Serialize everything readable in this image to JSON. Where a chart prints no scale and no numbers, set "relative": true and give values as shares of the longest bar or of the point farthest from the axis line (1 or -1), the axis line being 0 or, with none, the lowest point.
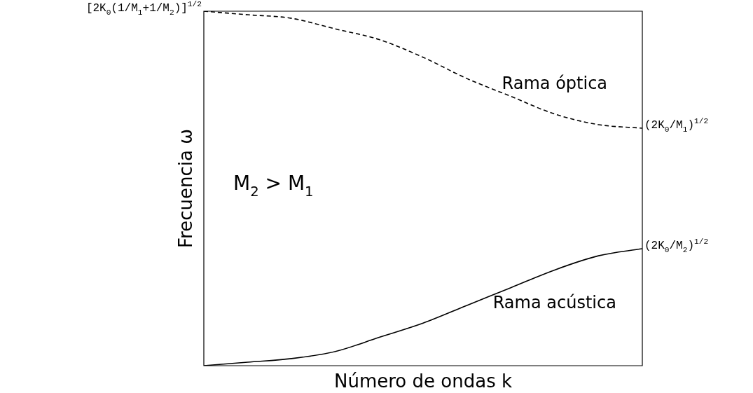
{
  "chart_data": {
    "type": "line",
    "relative": true,
    "xlabel": "Número de ondas k",
    "ylabel": "Frecuencia ω",
    "marker": "none",
    "categories": [
      null,
      null,
      null,
      null,
      null,
      null,
      null,
      null,
      null,
      null,
      null
    ],
    "series": [
      {
        "name": "Rama óptica",
        "color": "#000000",
        "line_style": "dashed",
        "values": [
          1,
          0.99,
          0.98,
          0.95,
          0.92,
          0.87,
          0.81,
          0.76,
          0.71,
          0.68,
          0.67
        ]
      },
      {
        "name": "Rama acústica",
        "color": "#000000",
        "line_style": "solid",
        "values": [
          0,
          0.01,
          0.02,
          0.04,
          0.08,
          0.12,
          0.17,
          0.22,
          0.27,
          0.31,
          0.33
        ]
      }
    ],
    "annotations": [
      "[2K$_{0}$(1/M$_{1}$+1/M$_{2}$)]$^{1/2}$",
      "(2K$_{0}$/M$_{1}$)$^{1/2}$",
      "(2K$_{0}$/M$_{2}$)$^{1/2}$",
      "M$_{2}$ > M$_{1}$"
    ]
  }
}
